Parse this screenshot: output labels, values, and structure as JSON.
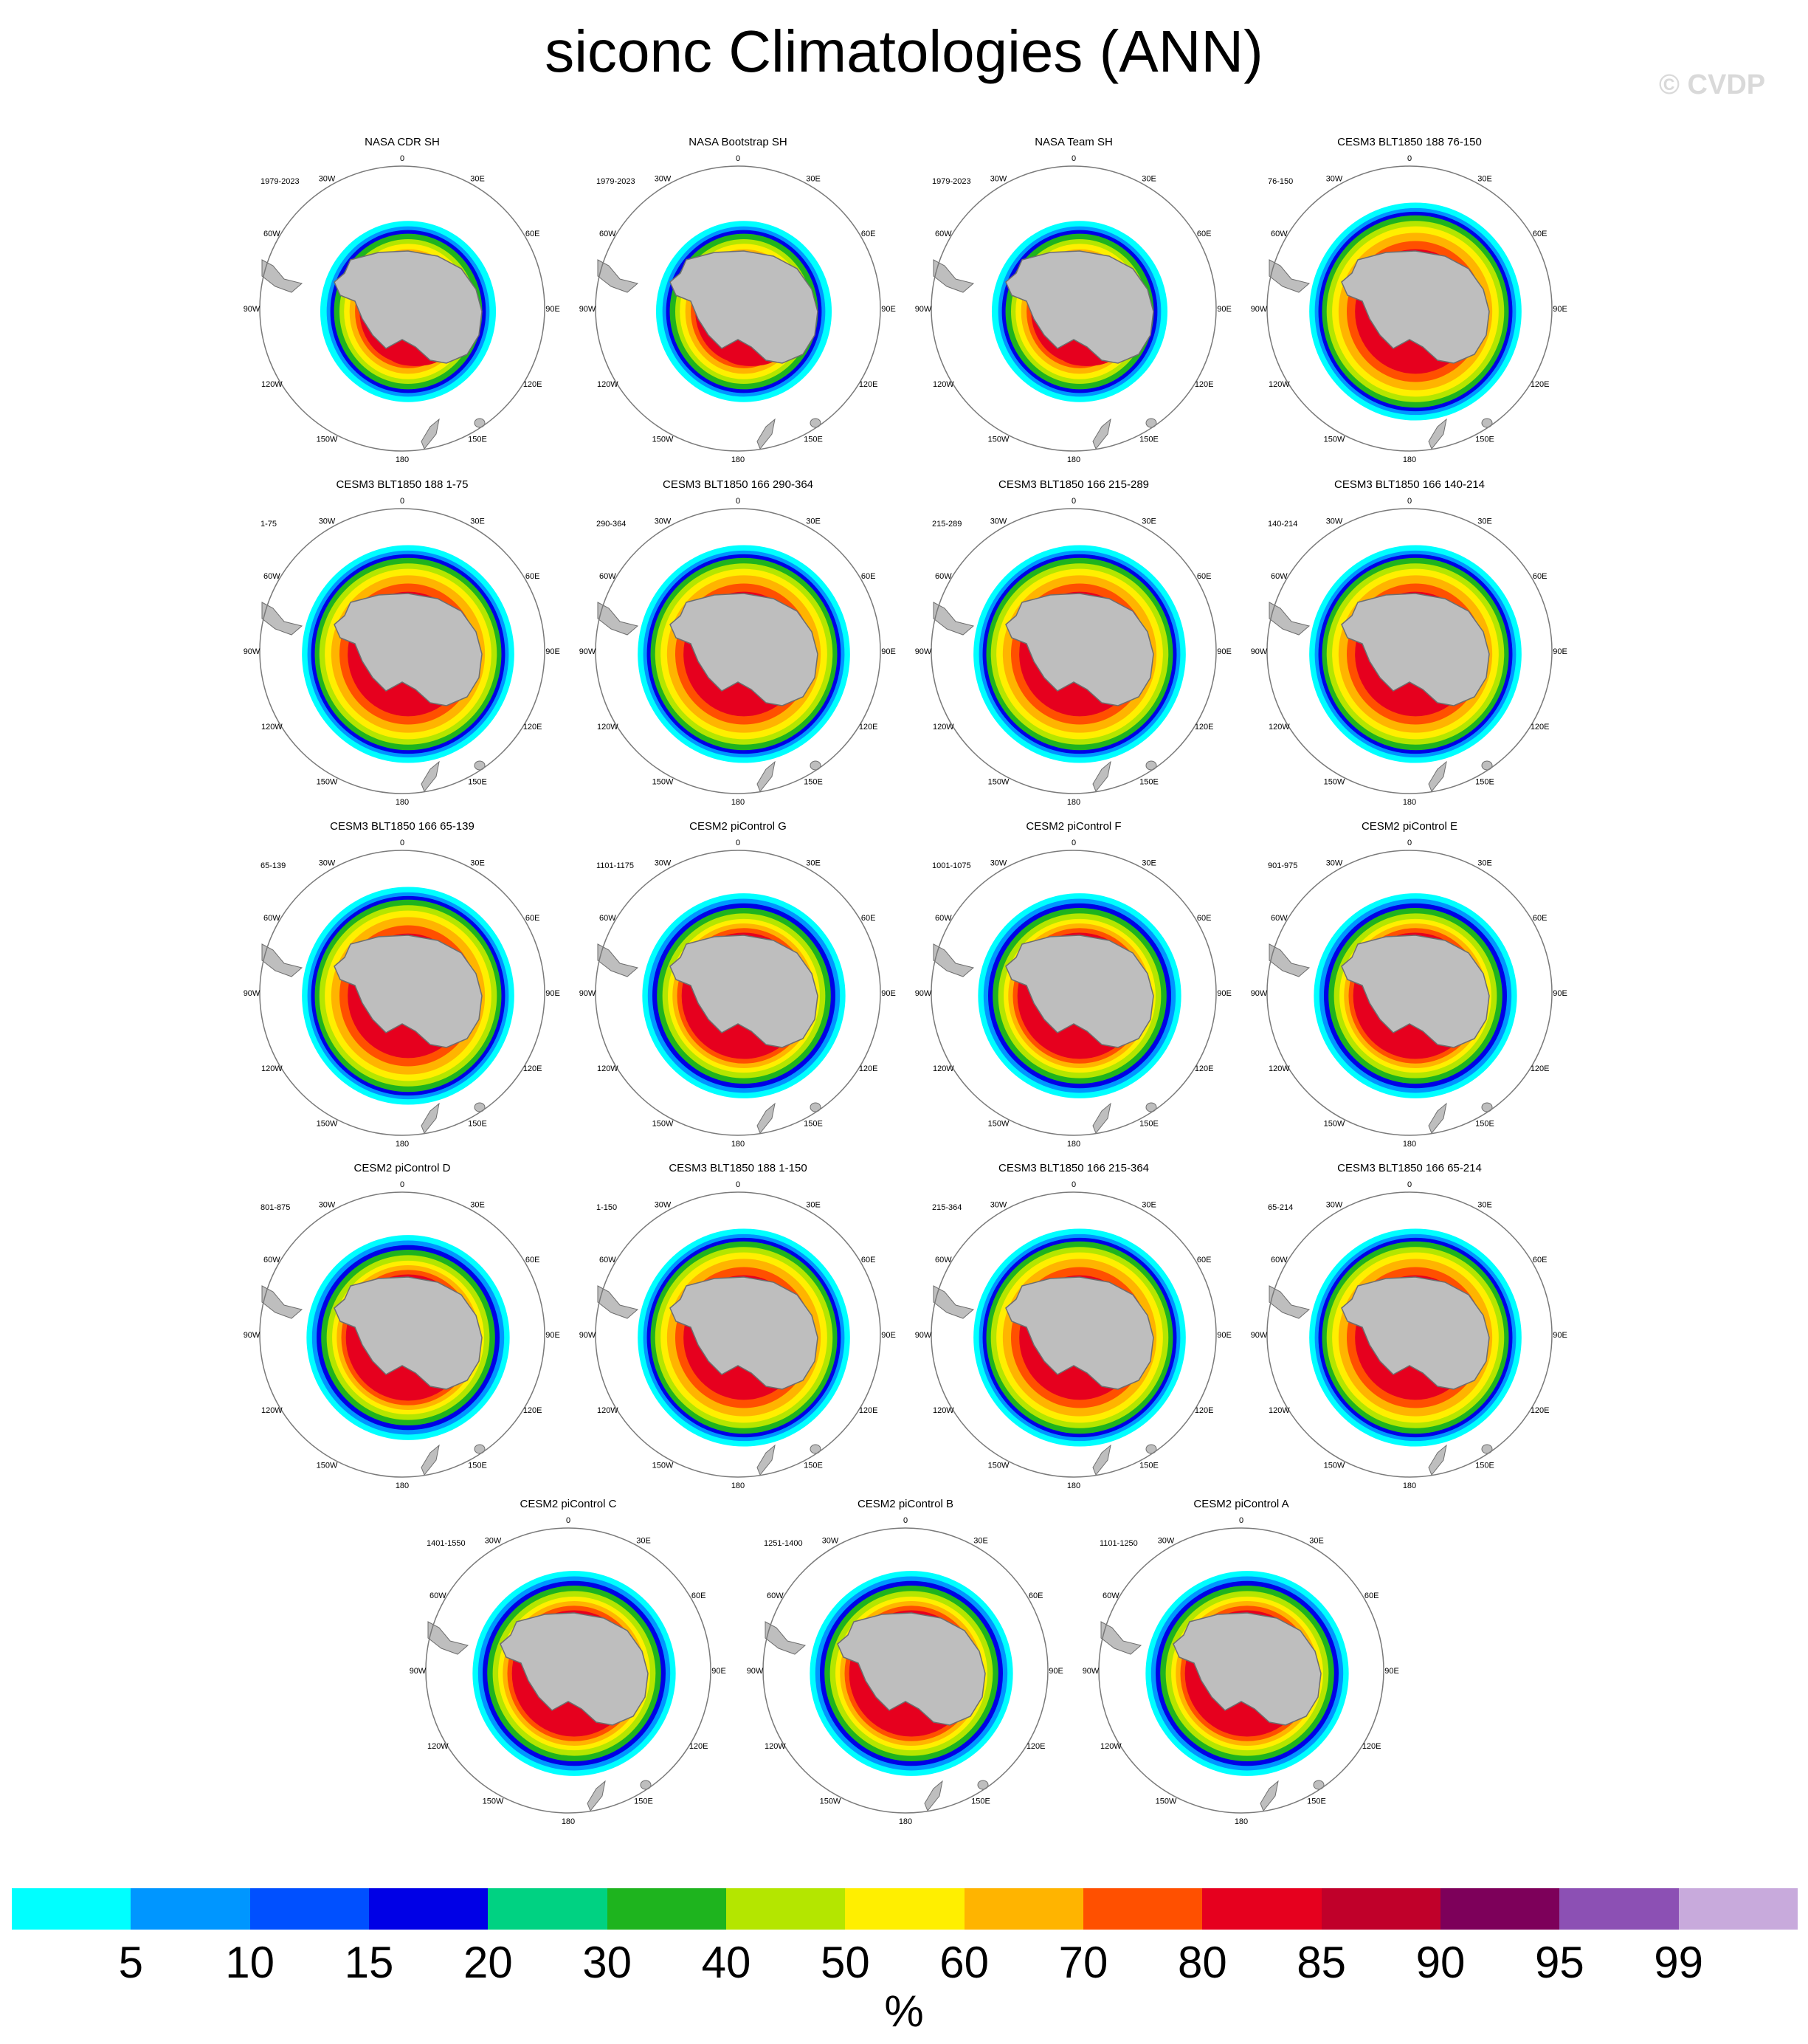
{
  "title": "siconc Climatologies (ANN)",
  "watermark": "© CVDP",
  "colors": {
    "land": "#bebebe",
    "land_edge": "#6e6e6e",
    "circle": "#7a7a7a"
  },
  "longitude_labels": [
    "0",
    "30E",
    "60E",
    "90E",
    "120E",
    "150E",
    "180",
    "150W",
    "120W",
    "90W",
    "60W",
    "30W"
  ],
  "panels": [
    {
      "title": "NASA CDR SH",
      "period": "1979-2023",
      "style": "obs"
    },
    {
      "title": "NASA Bootstrap SH",
      "period": "1979-2023",
      "style": "obs"
    },
    {
      "title": "NASA Team SH",
      "period": "1979-2023",
      "style": "obs"
    },
    {
      "title": "CESM3 BLT1850 188 76-150",
      "period": "76-150",
      "style": "cesm3"
    },
    {
      "title": "CESM3 BLT1850 188 1-75",
      "period": "1-75",
      "style": "cesm3"
    },
    {
      "title": "CESM3 BLT1850 166 290-364",
      "period": "290-364",
      "style": "cesm3"
    },
    {
      "title": "CESM3 BLT1850 166 215-289",
      "period": "215-289",
      "style": "cesm3"
    },
    {
      "title": "CESM3 BLT1850 166 140-214",
      "period": "140-214",
      "style": "cesm3"
    },
    {
      "title": "CESM3 BLT1850 166 65-139",
      "period": "65-139",
      "style": "cesm3"
    },
    {
      "title": "CESM2 piControl G",
      "period": "1101-1175",
      "style": "cesm2"
    },
    {
      "title": "CESM2 piControl F",
      "period": "1001-1075",
      "style": "cesm2"
    },
    {
      "title": "CESM2 piControl E",
      "period": "901-975",
      "style": "cesm2"
    },
    {
      "title": "CESM2 piControl D",
      "period": "801-875",
      "style": "cesm2"
    },
    {
      "title": "CESM3 BLT1850 188 1-150",
      "period": "1-150",
      "style": "cesm3"
    },
    {
      "title": "CESM3 BLT1850 166 215-364",
      "period": "215-364",
      "style": "cesm3"
    },
    {
      "title": "CESM3 BLT1850 166 65-214",
      "period": "65-214",
      "style": "cesm3"
    },
    {
      "title": "CESM2 piControl C",
      "period": "1401-1550",
      "style": "cesm2"
    },
    {
      "title": "CESM2 piControl B",
      "period": "1251-1400",
      "style": "cesm2"
    },
    {
      "title": "CESM2 piControl A",
      "period": "1101-1250",
      "style": "cesm2"
    }
  ],
  "colorbar": {
    "colors": [
      "#00ffff",
      "#0096ff",
      "#0050ff",
      "#0000e6",
      "#00d282",
      "#1eb41e",
      "#b4e600",
      "#ffef00",
      "#ffb400",
      "#ff5000",
      "#e6001e",
      "#c0002a",
      "#7d005a",
      "#8c50b4",
      "#c8aadc"
    ],
    "labels": [
      "5",
      "10",
      "15",
      "20",
      "30",
      "40",
      "50",
      "60",
      "70",
      "80",
      "85",
      "90",
      "95",
      "99"
    ],
    "unit": "%"
  }
}
